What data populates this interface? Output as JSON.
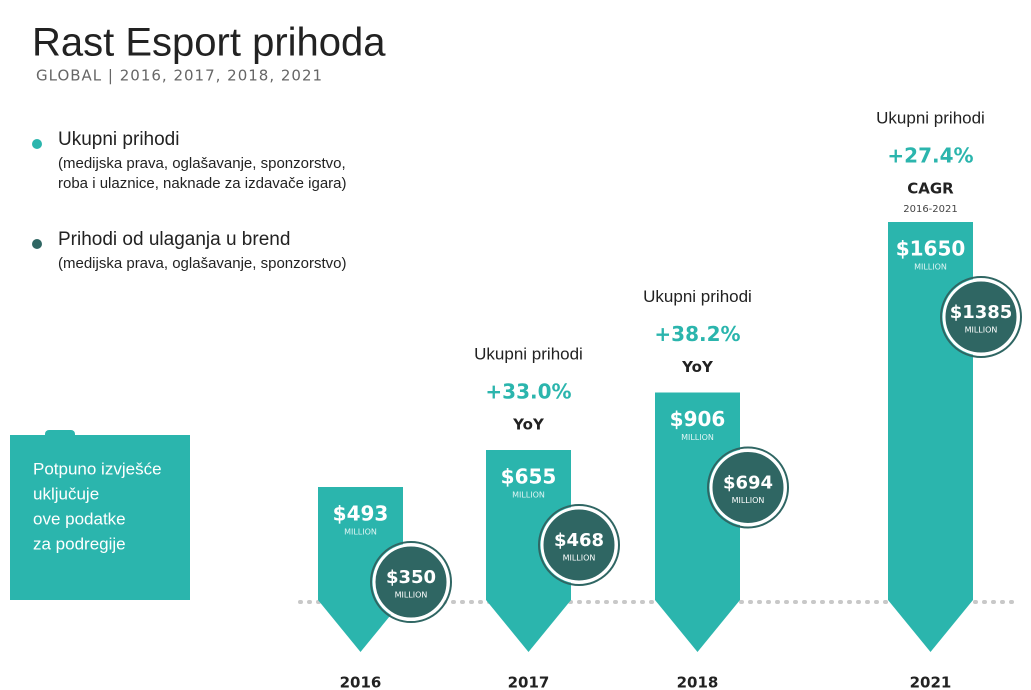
{
  "chart_data": {
    "type": "bar",
    "title": "Rast Esport prihoda",
    "subtitle": "GLOBAL | 2016, 2017, 2018, 2021",
    "categories": [
      "2016",
      "2017",
      "2018",
      "2021"
    ],
    "unit_label": "MILLION",
    "series": [
      {
        "name": "Ukupni prihodi",
        "description": [
          "(medijska prava, oglašavanje, sponzorstvo,",
          "roba i ulaznice, naknade za izdavače igara)"
        ],
        "color": "#2bb5ad",
        "values": [
          493,
          655,
          906,
          1650
        ],
        "value_labels": [
          "$493",
          "$655",
          "$906",
          "$1650"
        ]
      },
      {
        "name": "Prihodi od ulaganja u brend",
        "description": [
          "(medijska prava, oglašavanje, sponzorstvo)"
        ],
        "color": "#2f6663",
        "values": [
          350,
          468,
          694,
          1385
        ],
        "value_labels": [
          "$350",
          "$468",
          "$694",
          "$1385"
        ]
      }
    ],
    "growth": [
      null,
      {
        "heading": "Ukupni prihodi",
        "rate": "+33.0%",
        "basis": "YoY"
      },
      {
        "heading": "Ukupni prihodi",
        "rate": "+38.2%",
        "basis": "YoY"
      },
      {
        "heading": "Ukupni prihodi",
        "rate": "+27.4%",
        "basis": "CAGR",
        "period": "2016-2021"
      }
    ],
    "side_note": [
      "Potpuno izvješće",
      "uključuje",
      "ove podatke",
      "za podregije"
    ]
  }
}
